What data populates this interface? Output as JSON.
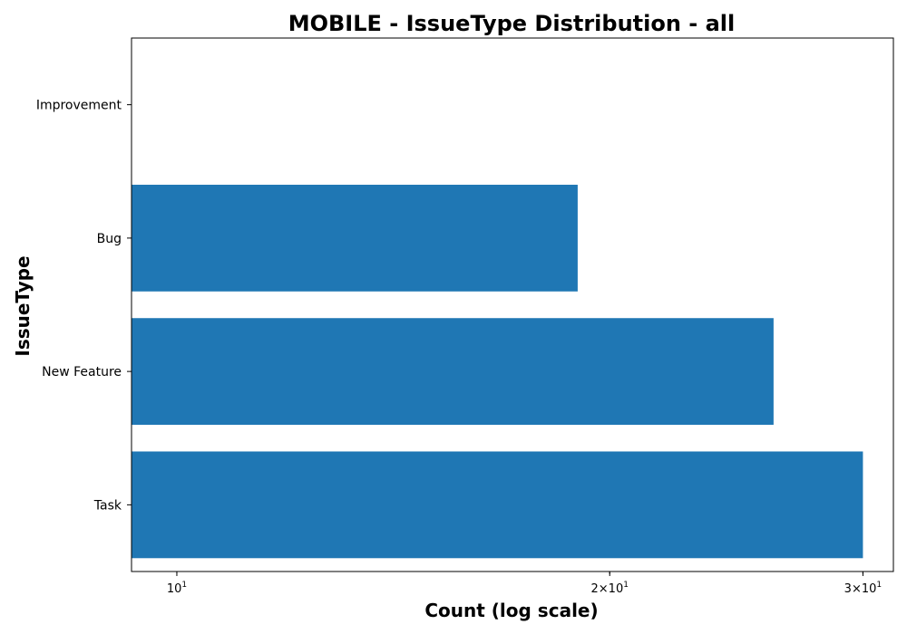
{
  "chart_data": {
    "type": "bar",
    "orientation": "horizontal",
    "title": "MOBILE - IssueType Distribution - all",
    "xlabel": "Count (log scale)",
    "ylabel": "IssueType",
    "x_scale": "log",
    "xlim": [
      9.3,
      31.5
    ],
    "categories": [
      "Improvement",
      "Bug",
      "New Feature",
      "Task"
    ],
    "values": [
      9,
      19,
      26,
      30
    ],
    "x_ticks": [
      {
        "value": 10,
        "mantissa": "",
        "base": "10",
        "exp": "1"
      },
      {
        "value": 20,
        "mantissa": "2×",
        "base": "10",
        "exp": "1"
      },
      {
        "value": 30,
        "mantissa": "3×",
        "base": "10",
        "exp": "1"
      }
    ],
    "minor_ticks": [
      9,
      10,
      20,
      30
    ],
    "grid": false,
    "legend": "none",
    "bar_color": "#1f77b4"
  }
}
